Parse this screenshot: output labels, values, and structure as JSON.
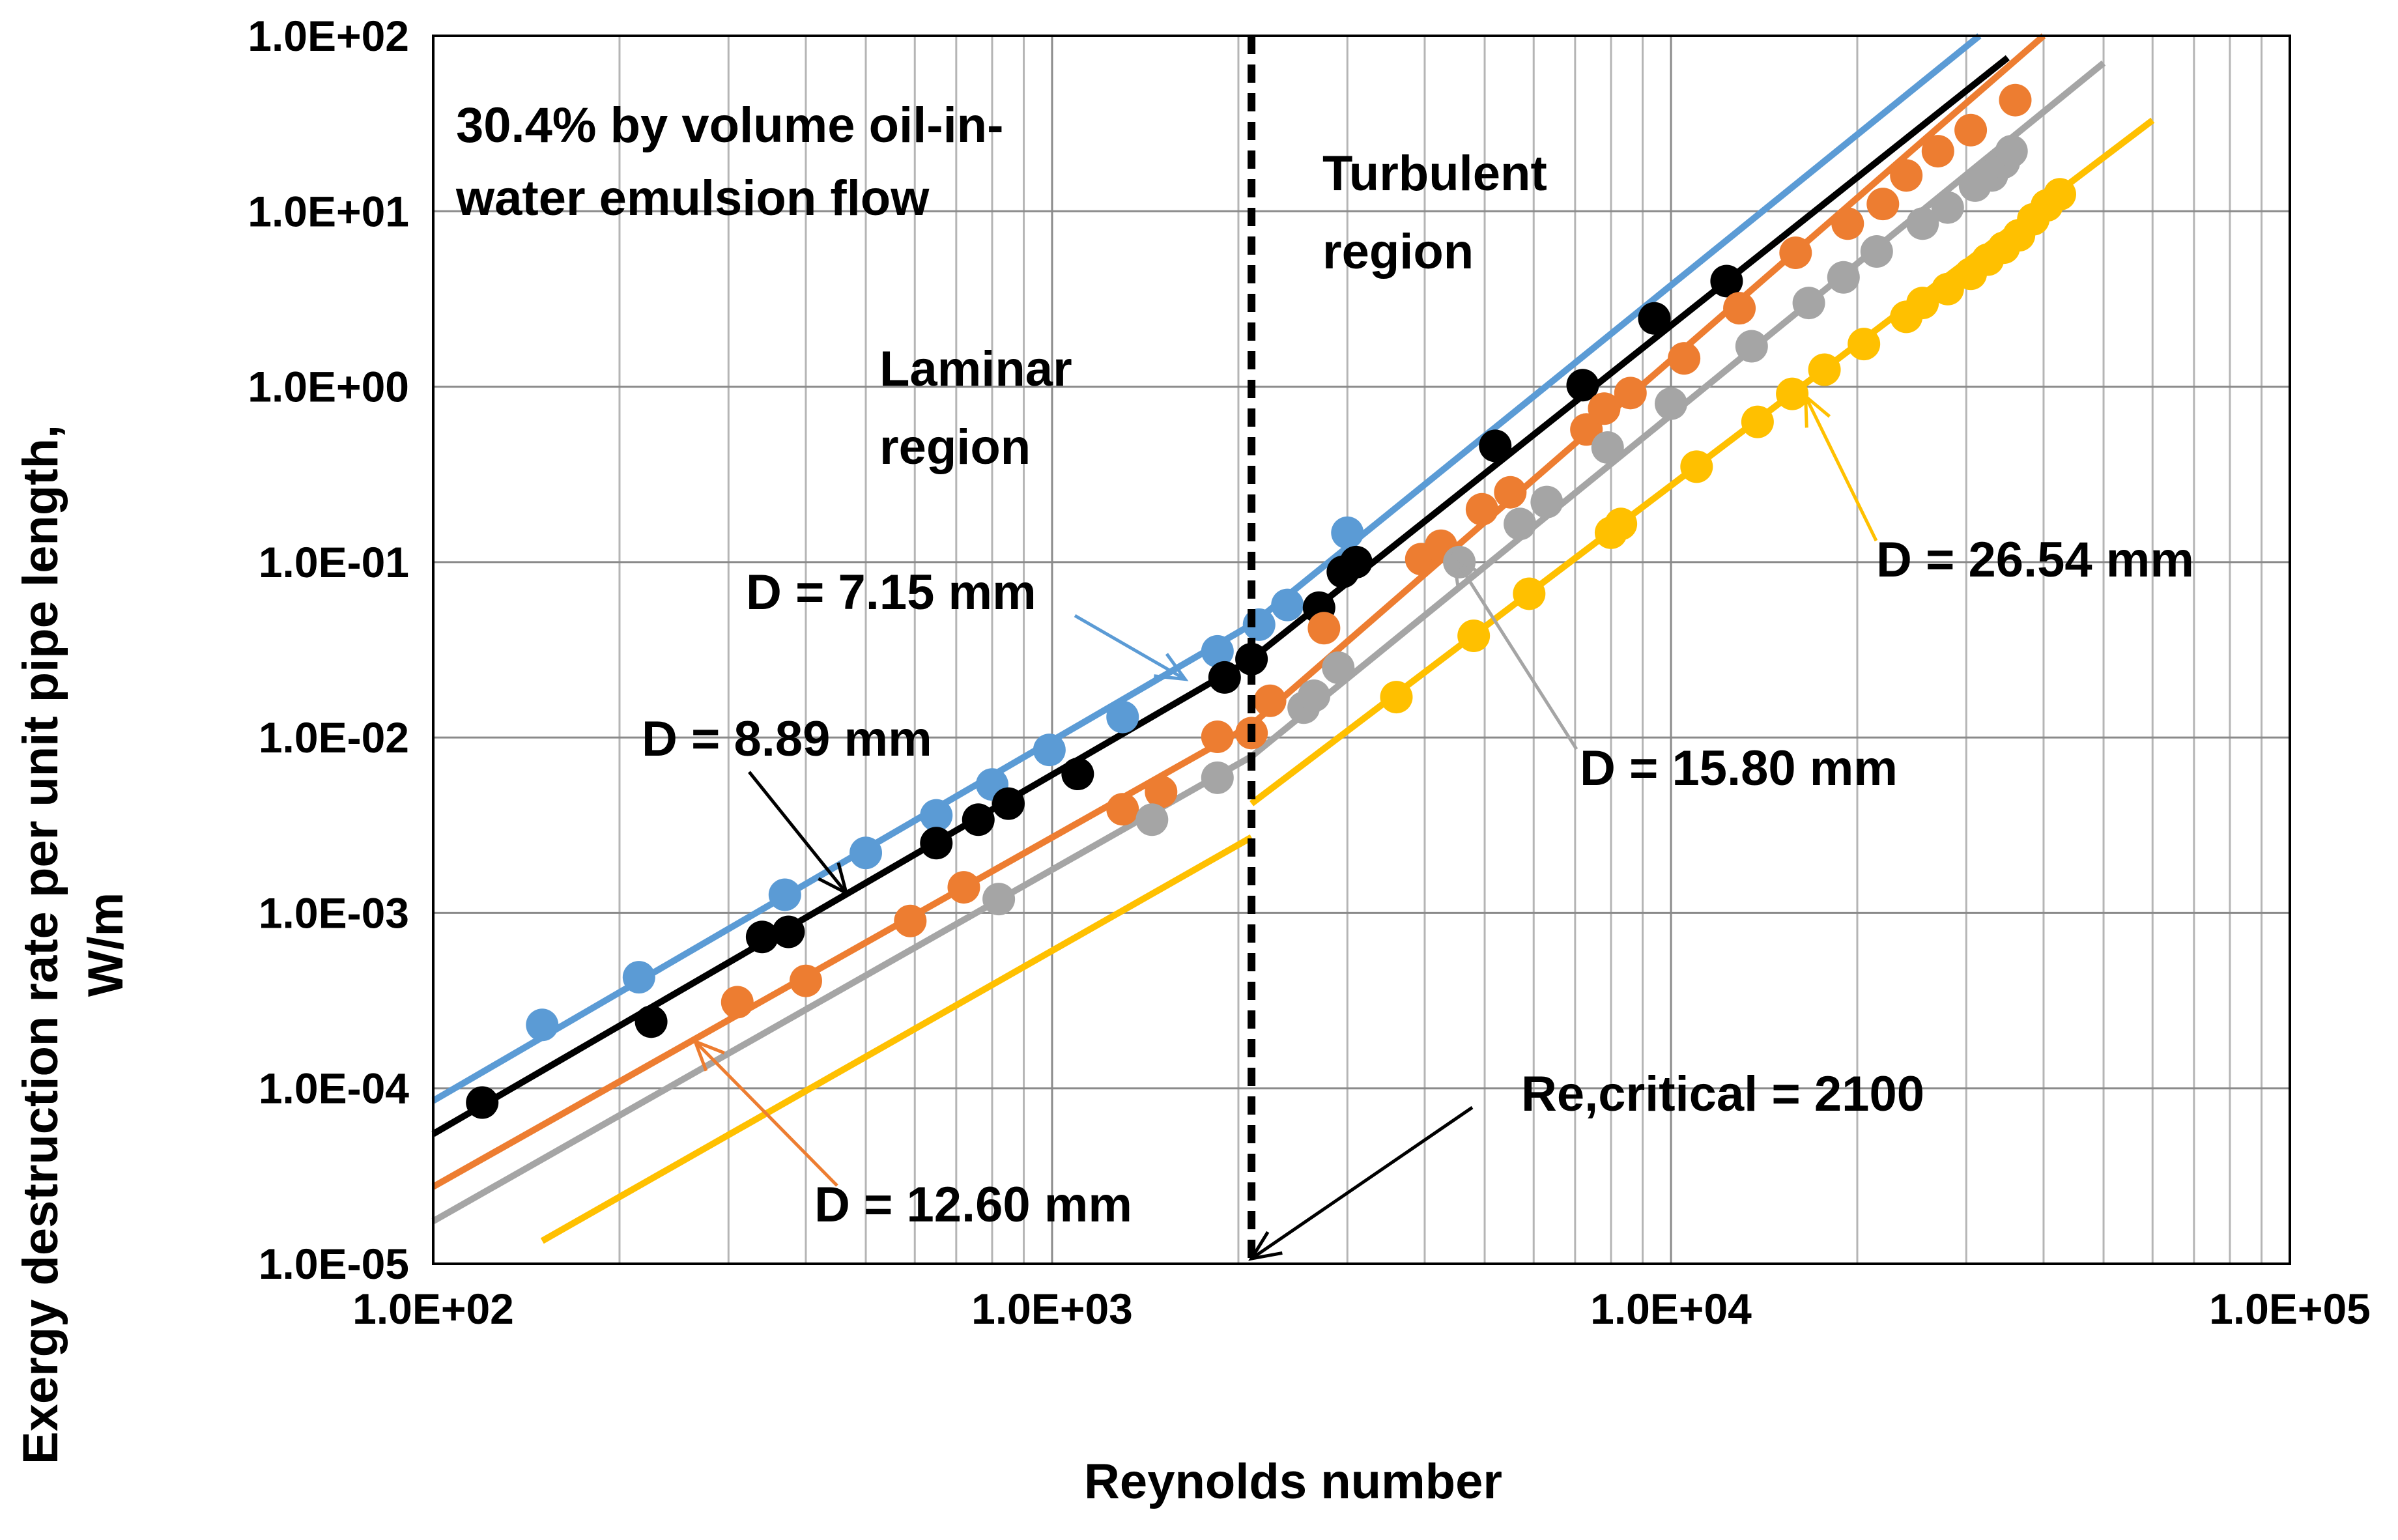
{
  "chart_data": {
    "type": "scatter",
    "scale": "log-log",
    "title": "",
    "xlabel": "Reynolds number",
    "ylabel_lines": [
      "Exergy destruction rate per unit pipe length,",
      "W/m"
    ],
    "xlim": [
      100,
      100000
    ],
    "ylim": [
      1e-05,
      100
    ],
    "grid": true,
    "x_tick_labels": [
      "1.0E+02",
      "1.0E+03",
      "1.0E+04",
      "1.0E+05"
    ],
    "y_tick_labels": [
      "1.0E-05",
      "1.0E-04",
      "1.0E-03",
      "1.0E-02",
      "1.0E-01",
      "1.0E+00",
      "1.0E+01",
      "1.0E+02"
    ],
    "critical_re": 2100,
    "annotations": {
      "emulsion": [
        "30.4% by volume oil-in-",
        "water emulsion flow"
      ],
      "laminar": [
        "Laminar",
        "region"
      ],
      "turbulent": [
        "Turbulent",
        "region"
      ],
      "critical": "Re,critical = 2100"
    },
    "series": [
      {
        "name": "D = 7.15 mm",
        "color": "#5b9bd5",
        "laminar_line": {
          "x": [
            100,
            2100
          ],
          "y": [
            8.5e-05,
            0.044
          ]
        },
        "turbulent_line": {
          "x": [
            2100,
            31500
          ],
          "y": [
            0.044,
            100
          ]
        },
        "points": [
          [
            150,
            0.00023
          ],
          [
            215,
            0.00043
          ],
          [
            370,
            0.00127
          ],
          [
            500,
            0.0022
          ],
          [
            650,
            0.0036
          ],
          [
            800,
            0.0054
          ],
          [
            990,
            0.0085
          ],
          [
            1300,
            0.0131
          ],
          [
            1850,
            0.031
          ],
          [
            2160,
            0.044
          ],
          [
            2400,
            0.057
          ],
          [
            3000,
            0.147
          ]
        ]
      },
      {
        "name": "D = 8.89 mm",
        "color": "#000000",
        "laminar_line": {
          "x": [
            100,
            2100
          ],
          "y": [
            5.5e-05,
            0.028
          ]
        },
        "turbulent_line": {
          "x": [
            2100,
            35000
          ],
          "y": [
            0.028,
            75
          ]
        },
        "points": [
          [
            120,
            8.3e-05
          ],
          [
            225,
            0.00024
          ],
          [
            340,
            0.00073
          ],
          [
            375,
            0.00078
          ],
          [
            650,
            0.0025
          ],
          [
            760,
            0.0034
          ],
          [
            850,
            0.0042
          ],
          [
            1100,
            0.0062
          ],
          [
            1900,
            0.022
          ],
          [
            2100,
            0.028
          ],
          [
            2700,
            0.055
          ],
          [
            2950,
            0.088
          ],
          [
            3100,
            0.1
          ],
          [
            5200,
            0.46
          ],
          [
            7200,
            1.02
          ],
          [
            9400,
            2.45
          ],
          [
            12300,
            4.0
          ]
        ]
      },
      {
        "name": "D = 12.60 mm",
        "color": "#ed7d31",
        "laminar_line": {
          "x": [
            100,
            2100
          ],
          "y": [
            2.75e-05,
            0.0118
          ]
        },
        "turbulent_line": {
          "x": [
            2100,
            40000
          ],
          "y": [
            0.0118,
            100
          ]
        },
        "points": [
          [
            310,
            0.00031
          ],
          [
            400,
            0.00041
          ],
          [
            590,
            0.0009
          ],
          [
            720,
            0.0014
          ],
          [
            1300,
            0.0039
          ],
          [
            1500,
            0.0049
          ],
          [
            1850,
            0.0101
          ],
          [
            2100,
            0.0106
          ],
          [
            2250,
            0.0162
          ],
          [
            2750,
            0.042
          ],
          [
            3950,
            0.104
          ],
          [
            4250,
            0.124
          ],
          [
            4950,
            0.2
          ],
          [
            5500,
            0.25
          ],
          [
            7300,
            0.57
          ],
          [
            7800,
            0.75
          ],
          [
            8600,
            0.92
          ],
          [
            10500,
            1.45
          ],
          [
            12900,
            2.8
          ],
          [
            15900,
            5.8
          ],
          [
            19300,
            8.5
          ],
          [
            22000,
            11.0
          ],
          [
            24000,
            16.0
          ],
          [
            27000,
            22.0
          ],
          [
            30500,
            29.0
          ],
          [
            36000,
            43.0
          ]
        ]
      },
      {
        "name": "D = 15.80 mm",
        "color": "#a5a5a5",
        "laminar_line": {
          "x": [
            100,
            2100
          ],
          "y": [
            1.75e-05,
            0.0078
          ]
        },
        "turbulent_line": {
          "x": [
            2100,
            50000
          ],
          "y": [
            0.0078,
            70
          ]
        },
        "points": [
          [
            820,
            0.0012
          ],
          [
            1450,
            0.0034
          ],
          [
            1850,
            0.0059
          ],
          [
            2550,
            0.0148
          ],
          [
            2650,
            0.0173
          ],
          [
            2900,
            0.025
          ],
          [
            4550,
            0.1
          ],
          [
            5700,
            0.165
          ],
          [
            6300,
            0.22
          ],
          [
            7900,
            0.45
          ],
          [
            10000,
            0.8
          ],
          [
            13500,
            1.7
          ],
          [
            16700,
            3.0
          ],
          [
            19000,
            4.2
          ],
          [
            21500,
            5.9
          ],
          [
            25500,
            8.5
          ],
          [
            28000,
            10.5
          ],
          [
            31000,
            14.0
          ],
          [
            33000,
            16.0
          ],
          [
            34500,
            19.0
          ],
          [
            35500,
            22.0
          ]
        ]
      },
      {
        "name": "D = 26.54 mm",
        "color": "#ffc000",
        "laminar_line": {
          "x": [
            150,
            2100
          ],
          "y": [
            1.35e-05,
            0.0027
          ]
        },
        "turbulent_line": {
          "x": [
            2100,
            60000
          ],
          "y": [
            0.0042,
            33
          ]
        },
        "points": [
          [
            3600,
            0.017
          ],
          [
            4800,
            0.038
          ],
          [
            5900,
            0.066
          ],
          [
            8000,
            0.147
          ],
          [
            8300,
            0.165
          ],
          [
            11000,
            0.35
          ],
          [
            13800,
            0.63
          ],
          [
            15700,
            0.91
          ],
          [
            17700,
            1.25
          ],
          [
            20500,
            1.75
          ],
          [
            24000,
            2.5
          ],
          [
            25500,
            3.0
          ],
          [
            28000,
            3.6
          ],
          [
            30500,
            4.4
          ],
          [
            32500,
            5.3
          ],
          [
            34500,
            6.2
          ],
          [
            36500,
            7.3
          ],
          [
            38500,
            9.0
          ],
          [
            40500,
            10.8
          ],
          [
            42500,
            12.5
          ]
        ]
      }
    ]
  }
}
